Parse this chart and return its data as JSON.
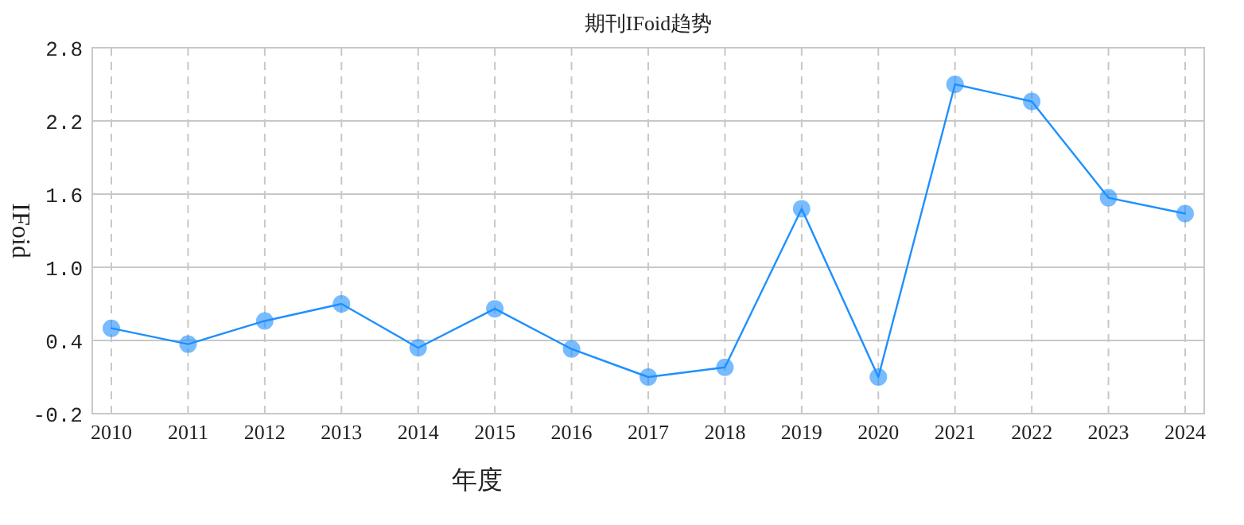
{
  "chart_data": {
    "type": "line",
    "title": "期刊IFoid趋势",
    "xlabel": "年度",
    "ylabel": "IFoid",
    "categories": [
      "2010",
      "2011",
      "2012",
      "2013",
      "2014",
      "2015",
      "2016",
      "2017",
      "2018",
      "2019",
      "2020",
      "2021",
      "2022",
      "2023",
      "2024"
    ],
    "series": [
      {
        "color": "#1e90ff",
        "values": [
          0.5,
          0.37,
          0.56,
          0.7,
          0.34,
          0.66,
          0.33,
          0.1,
          0.18,
          1.48,
          0.1,
          2.5,
          2.36,
          1.57,
          1.44
        ]
      }
    ],
    "ylim": [
      -0.2,
      2.8
    ],
    "yticks": [
      {
        "value": -0.2,
        "label": "-0.2"
      },
      0.4,
      {
        "value": 1.0,
        "label": "1.0"
      },
      1.6,
      2.2,
      2.8
    ],
    "grid": true,
    "marker": "circle",
    "line_style": "solid"
  }
}
